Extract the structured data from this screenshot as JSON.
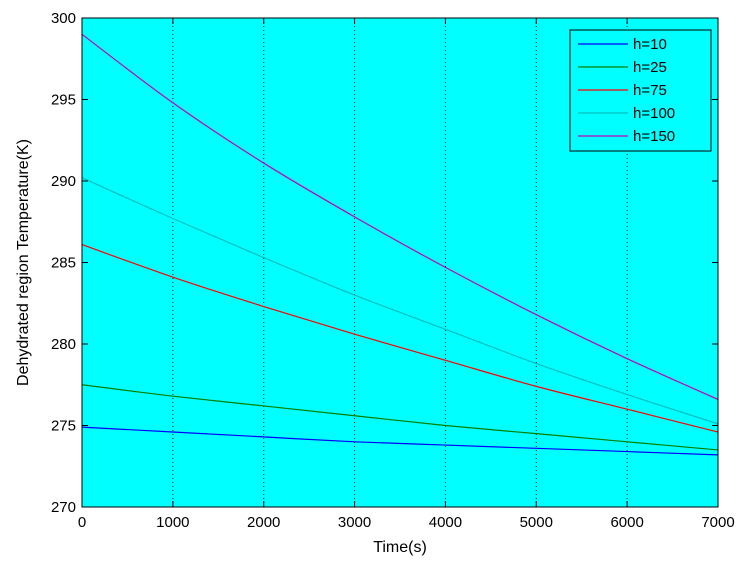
{
  "chart_data": {
    "type": "line",
    "title": "",
    "xlabel": "Time(s)",
    "ylabel": "Dehydrated region Temperature(K)",
    "xlim": [
      0,
      7000
    ],
    "ylim": [
      270,
      300
    ],
    "xticks": [
      0,
      1000,
      2000,
      3000,
      4000,
      5000,
      6000,
      7000
    ],
    "yticks": [
      270,
      275,
      280,
      285,
      290,
      295,
      300
    ],
    "grid": "vertical dotted",
    "legend_position": "top-right",
    "plot_background": "#00ffff",
    "x": [
      0,
      1000,
      2000,
      3000,
      4000,
      5000,
      6000,
      7000
    ],
    "series": [
      {
        "name": "h=10",
        "color": "#0000ff",
        "values": [
          274.9,
          274.6,
          274.3,
          274.0,
          273.8,
          273.6,
          273.4,
          273.2
        ]
      },
      {
        "name": "h=25",
        "color": "#008000",
        "values": [
          277.5,
          276.8,
          276.2,
          275.6,
          275.0,
          274.5,
          274.0,
          273.5
        ]
      },
      {
        "name": "h=75",
        "color": "#ff0000",
        "values": [
          286.1,
          284.1,
          282.3,
          280.6,
          279.0,
          277.4,
          276.0,
          274.6
        ]
      },
      {
        "name": "h=100",
        "color": "#00bfbf",
        "values": [
          290.2,
          287.7,
          285.3,
          283.0,
          280.9,
          278.8,
          276.9,
          275.1
        ]
      },
      {
        "name": "h=150",
        "color": "#bf00bf",
        "values": [
          299.0,
          294.8,
          291.1,
          287.8,
          284.7,
          281.8,
          279.1,
          276.6
        ]
      }
    ]
  }
}
